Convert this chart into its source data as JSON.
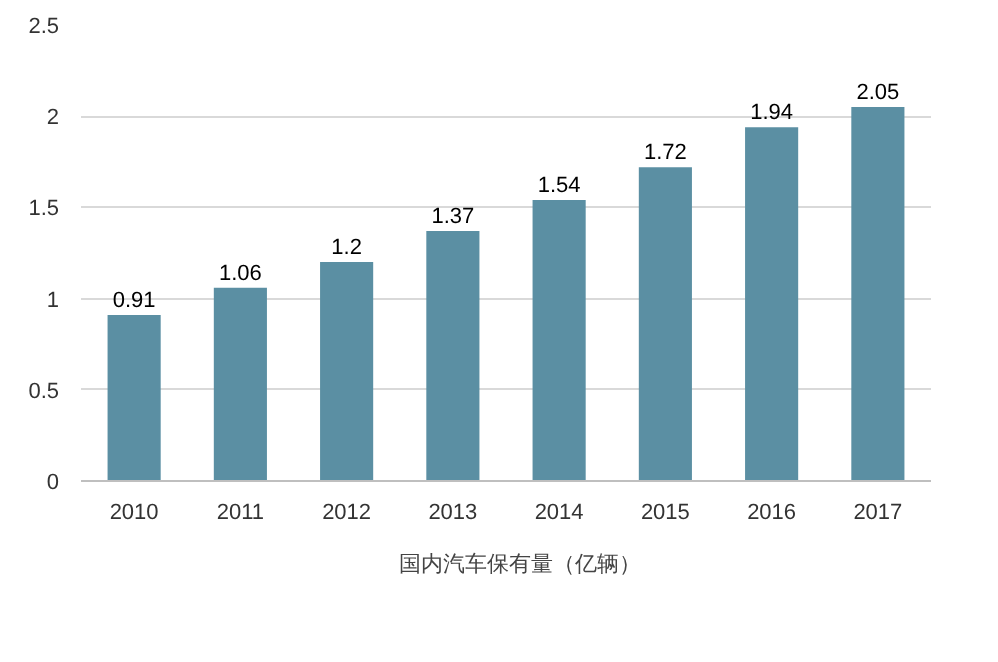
{
  "chart_data": {
    "type": "bar",
    "categories": [
      "2010",
      "2011",
      "2012",
      "2013",
      "2014",
      "2015",
      "2016",
      "2017"
    ],
    "series": [
      {
        "name": "国内汽车保有量（亿辆）",
        "color": "#5b8fa3",
        "values": [
          0.91,
          1.06,
          1.2,
          1.37,
          1.54,
          1.72,
          1.94,
          2.05
        ]
      }
    ],
    "ylim": [
      0,
      2.5
    ],
    "yticks": [
      0,
      0.5,
      1,
      1.5,
      2,
      2.5
    ],
    "grid": "y",
    "legend": "bottom",
    "data_labels": true
  }
}
